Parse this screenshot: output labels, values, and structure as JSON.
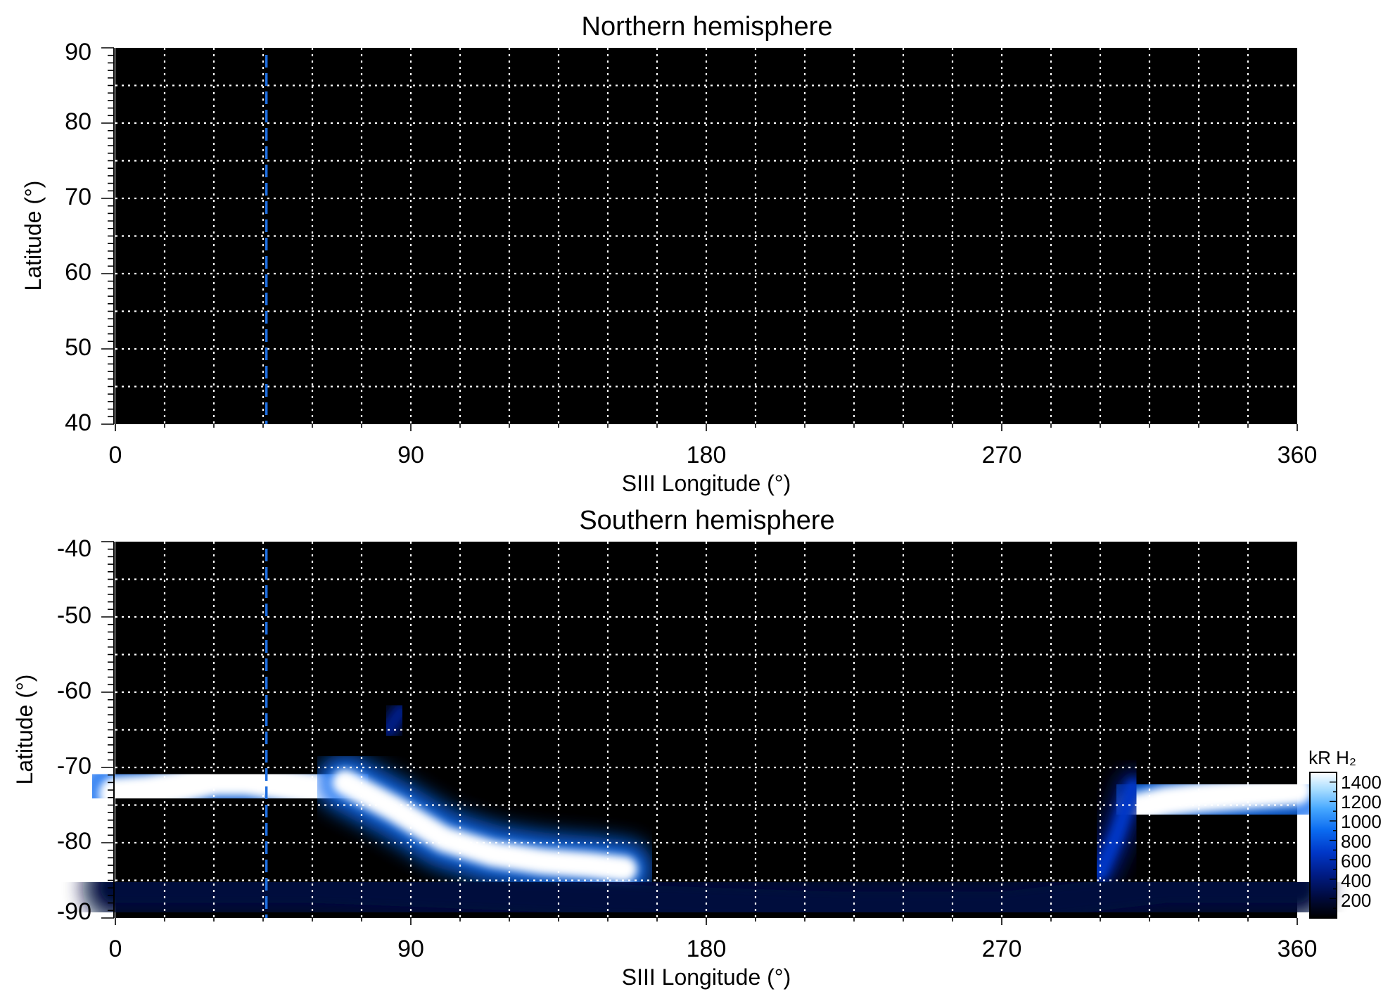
{
  "chart_data": [
    {
      "type": "heatmap",
      "title": "Northern hemisphere",
      "xlabel": "SIII Longitude (°)",
      "ylabel": "Latitude (°)",
      "xlim": [
        0,
        360
      ],
      "ylim": [
        40,
        90
      ],
      "xticks": [
        "0",
        "90",
        "180",
        "270",
        "360"
      ],
      "yticks": [
        "40",
        "50",
        "60",
        "70",
        "80",
        "90"
      ],
      "grid": true,
      "background_color": "#000000",
      "grid_color": "#ffffff",
      "marker_line": {
        "longitude": 46,
        "color": "#1f6fe0",
        "style": "dashed"
      },
      "emission_regions": []
    },
    {
      "type": "heatmap",
      "title": "Southern hemisphere",
      "xlabel": "SIII Longitude (°)",
      "ylabel": "Latitude (°)",
      "xlim": [
        0,
        360
      ],
      "ylim": [
        -90,
        -40
      ],
      "xticks": [
        "0",
        "90",
        "180",
        "270",
        "360"
      ],
      "yticks": [
        "-40",
        "-50",
        "-60",
        "-70",
        "-80",
        "-90"
      ],
      "grid": true,
      "background_color": "#000000",
      "grid_color": "#ffffff",
      "marker_line": {
        "longitude": 46,
        "color": "#1f6fe0",
        "style": "dashed"
      },
      "emission_regions": [
        {
          "name": "oval-left",
          "points": [
            [
              0,
              -73.5
            ],
            [
              10,
              -73.2
            ],
            [
              20,
              -72.5
            ],
            [
              30,
              -71.5
            ],
            [
              40,
              -71.5
            ],
            [
              55,
              -72.5
            ],
            [
              70,
              -73.5
            ]
          ],
          "width": 4.5,
          "intensity": 1400
        },
        {
          "name": "oval-middle-arc",
          "points": [
            [
              70,
              -72
            ],
            [
              85,
              -75.5
            ],
            [
              100,
              -79.5
            ],
            [
              115,
              -81.5
            ],
            [
              130,
              -82.5
            ],
            [
              145,
              -83
            ],
            [
              155,
              -83.5
            ]
          ],
          "width": 3.5,
          "intensity": 1400
        },
        {
          "name": "oval-right",
          "points": [
            [
              310,
              -75.5
            ],
            [
              320,
              -74.5
            ],
            [
              330,
              -74
            ],
            [
              345,
              -73.5
            ],
            [
              360,
              -73
            ]
          ],
          "width": 4,
          "intensity": 1400
        },
        {
          "name": "oval-right-edge",
          "points": [
            [
              300,
              -84
            ],
            [
              305,
              -79
            ],
            [
              310,
              -72.5
            ]
          ],
          "width": 2,
          "intensity": 700
        },
        {
          "name": "blob-upper",
          "points": [
            [
              83,
              -65
            ],
            [
              87,
              -62.5
            ]
          ],
          "width": 2,
          "intensity": 500
        },
        {
          "name": "diffuse-polar-band",
          "points": [
            [
              0,
              -86
            ],
            [
              60,
              -86
            ],
            [
              150,
              -87.5
            ],
            [
              220,
              -88.5
            ],
            [
              270,
              -88.5
            ],
            [
              320,
              -86
            ],
            [
              360,
              -86
            ]
          ],
          "width": 4,
          "intensity": 250
        }
      ]
    }
  ],
  "colorbar": {
    "label": "kR H₂",
    "ticks": [
      "200",
      "400",
      "600",
      "800",
      "1000",
      "1200",
      "1400"
    ],
    "range": [
      0,
      1500
    ],
    "colors": [
      "#000000",
      "#000a3c",
      "#001c86",
      "#0037c8",
      "#0a6af0",
      "#46a8ff",
      "#a6dcff",
      "#ffffff"
    ]
  }
}
